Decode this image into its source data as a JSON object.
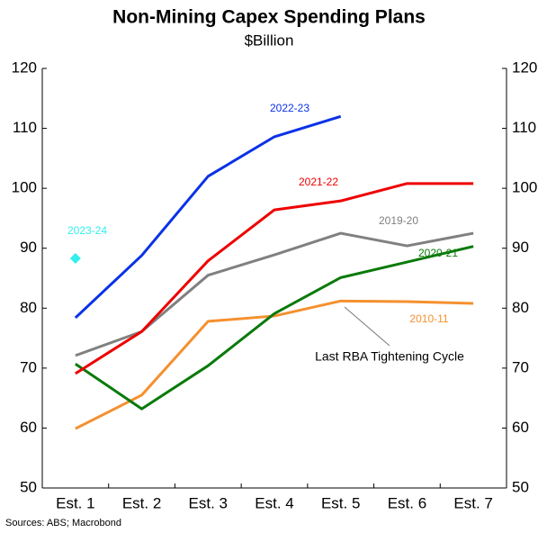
{
  "chart_data": {
    "type": "line",
    "title": "Non-Mining Capex Spending Plans",
    "subtitle": "$Billion",
    "source": "Sources: ABS; Macrobond",
    "categories": [
      "Est. 1",
      "Est. 2",
      "Est. 3",
      "Est. 4",
      "Est. 5",
      "Est. 6",
      "Est. 7"
    ],
    "series": [
      {
        "name": "2010-11",
        "color": "#f5902f",
        "values": [
          59.9,
          65.5,
          77.8,
          78.7,
          81.2,
          81.1,
          80.8
        ]
      },
      {
        "name": "2019-20",
        "color": "#808080",
        "values": [
          72.1,
          76.1,
          85.5,
          88.9,
          92.5,
          90.4,
          92.5
        ]
      },
      {
        "name": "2020-21",
        "color": "#0a7a0a",
        "values": [
          70.7,
          63.2,
          70.4,
          79.1,
          85.1,
          87.7,
          90.3
        ]
      },
      {
        "name": "2021-22",
        "color": "#ee0000",
        "values": [
          69.1,
          76.1,
          87.9,
          96.4,
          97.9,
          100.8,
          100.8
        ]
      },
      {
        "name": "2022-23",
        "color": "#0a32e6",
        "values": [
          78.4,
          88.8,
          102.0,
          108.6,
          112.0,
          null,
          null
        ]
      },
      {
        "name": "2023-24",
        "color": "#33eeee",
        "values": [
          88.3,
          null,
          null,
          null,
          null,
          null,
          null
        ]
      }
    ],
    "annotation": "Last RBA Tightening Cycle",
    "ylim": [
      50,
      120
    ],
    "yticks": [
      50,
      60,
      70,
      80,
      90,
      100,
      110,
      120
    ],
    "y2lim": [
      50,
      120
    ],
    "y2ticks": [
      50,
      60,
      70,
      80,
      90,
      100,
      110,
      120
    ],
    "grid": false
  }
}
